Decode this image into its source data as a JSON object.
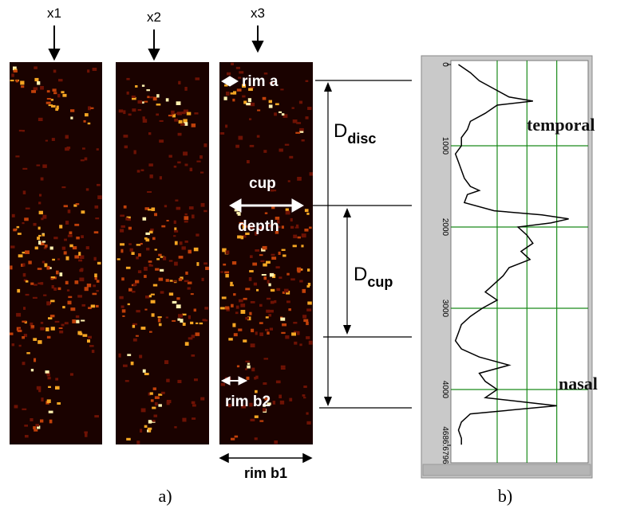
{
  "figure": {
    "columns": [
      "x1",
      "x2",
      "x3"
    ],
    "rim_a": "rim a",
    "cup": "cup",
    "depth": "depth",
    "rim_b2": "rim b2",
    "rim_b1": "rim b1",
    "d_disc": {
      "main": "D",
      "sub": "disc"
    },
    "d_cup": {
      "main": "D",
      "sub": "cup"
    },
    "temporal": "temporal",
    "nasal": "nasal",
    "caption_a": "a)",
    "caption_b": "b)"
  },
  "chart_data": {
    "type": "line",
    "x": [
      0,
      100,
      200,
      300,
      400,
      450,
      500,
      600,
      700,
      800,
      900,
      1000,
      1100,
      1200,
      1300,
      1400,
      1500,
      1550,
      1600,
      1700,
      1800,
      1850,
      1900,
      1950,
      2000,
      2100,
      2200,
      2300,
      2400,
      2500,
      2600,
      2700,
      2800,
      2900,
      3000,
      3100,
      3200,
      3300,
      3400,
      3500,
      3600,
      3700,
      3800,
      3900,
      4000,
      4100,
      4200,
      4300,
      4400,
      4500,
      4600,
      4680
    ],
    "values": [
      0.2,
      0.6,
      0.9,
      1.4,
      1.9,
      2.7,
      1.5,
      1.1,
      0.6,
      0.5,
      0.3,
      0.3,
      0.1,
      0.2,
      0.3,
      0.4,
      0.6,
      0.9,
      0.5,
      0.4,
      1.4,
      3.0,
      3.9,
      3.3,
      2.2,
      2.5,
      2.7,
      2.3,
      2.6,
      1.9,
      1.7,
      1.4,
      1.1,
      1.5,
      1.0,
      0.6,
      0.3,
      0.2,
      0.1,
      0.3,
      0.9,
      1.9,
      0.9,
      1.1,
      1.5,
      1.1,
      3.5,
      0.6,
      0.3,
      0.2,
      0.3,
      0.3
    ],
    "color": "#000000",
    "xlim": [
      0,
      4686.6796
    ],
    "xticks": [
      0,
      1000,
      2000,
      3000,
      4000,
      4686.6796
    ],
    "ylim": [
      0,
      4.5
    ],
    "grid_values": [
      1.5,
      2.5,
      3.5
    ],
    "grid_color": "#1a8a1a"
  }
}
